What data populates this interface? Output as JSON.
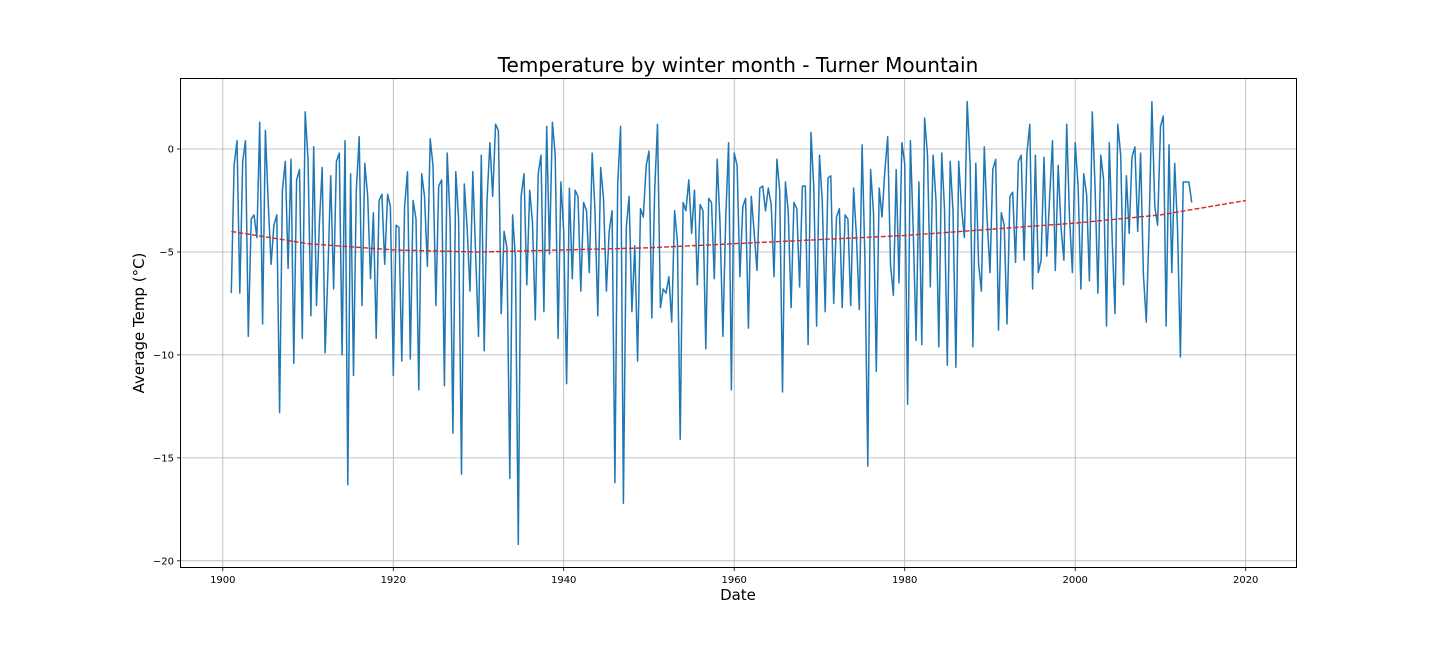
{
  "chart_data": {
    "type": "line",
    "title": "Temperature by winter month - Turner Mountain",
    "xlabel": "Date",
    "ylabel": "Average Temp (°C)",
    "xlim": [
      1895.1,
      2025.9
    ],
    "ylim": [
      -20.3,
      3.4
    ],
    "x_ticks": [
      1900,
      1920,
      1940,
      1960,
      1980,
      2000,
      2020
    ],
    "x_tick_labels": [
      "1900",
      "1920",
      "1940",
      "1960",
      "1980",
      "2000",
      "2020"
    ],
    "y_ticks": [
      -20,
      -15,
      -10,
      -5,
      0
    ],
    "y_tick_labels": [
      "−20",
      "−15",
      "−10",
      "−5",
      "0"
    ],
    "grid": true,
    "legend": "none",
    "x_scale": "date",
    "series": [
      {
        "name": "",
        "color": "#1f77b4",
        "style": "solid",
        "x_start": 1901.0,
        "samples_per_year": 3,
        "values": [
          -7.0,
          -0.8,
          0.4,
          -7.0,
          -0.6,
          0.4,
          -9.1,
          -3.4,
          -3.2,
          -4.3,
          1.3,
          -8.5,
          0.9,
          -2.6,
          -5.6,
          -3.7,
          -3.2,
          -12.8,
          -2.0,
          -0.6,
          -5.8,
          -0.5,
          -10.4,
          -1.5,
          -1.0,
          -9.2,
          1.8,
          -0.5,
          -8.1,
          0.1,
          -7.6,
          -3.6,
          -0.9,
          -9.9,
          -6.0,
          -1.3,
          -6.8,
          -0.6,
          -0.2,
          -10.0,
          0.4,
          -16.3,
          -1.2,
          -11.0,
          -2.0,
          0.6,
          -7.6,
          -0.7,
          -2.3,
          -6.3,
          -3.1,
          -9.2,
          -2.5,
          -2.2,
          -5.6,
          -2.2,
          -2.8,
          -11.0,
          -3.7,
          -3.8,
          -10.3,
          -2.8,
          -1.1,
          -10.2,
          -2.5,
          -3.4,
          -11.7,
          -1.2,
          -2.3,
          -5.7,
          0.5,
          -0.8,
          -7.6,
          -1.8,
          -1.5,
          -11.5,
          -0.2,
          -3.5,
          -13.8,
          -1.1,
          -3.4,
          -15.8,
          -1.7,
          -3.8,
          -6.9,
          -1.1,
          -5.2,
          -9.1,
          -0.3,
          -9.8,
          -2.5,
          0.3,
          -2.3,
          1.2,
          0.9,
          -8.0,
          -4.0,
          -4.8,
          -16.0,
          -3.2,
          -5.3,
          -19.2,
          -2.3,
          -1.2,
          -6.6,
          -2.0,
          -3.6,
          -8.3,
          -1.2,
          -0.3,
          -7.9,
          1.1,
          -5.1,
          1.3,
          -0.3,
          -9.2,
          -1.6,
          -4.0,
          -11.4,
          -1.9,
          -6.3,
          -2.0,
          -2.3,
          -6.9,
          -2.6,
          -3.0,
          -6.0,
          -0.2,
          -3.0,
          -8.1,
          -0.9,
          -2.4,
          -6.9,
          -4.0,
          -3.0,
          -16.2,
          -1.7,
          1.1,
          -17.2,
          -3.8,
          -2.3,
          -7.9,
          -4.7,
          -10.3,
          -2.9,
          -3.3,
          -0.8,
          -0.1,
          -8.2,
          -2.0,
          1.2,
          -7.7,
          -6.8,
          -7.0,
          -6.2,
          -8.4,
          -3.0,
          -4.5,
          -14.1,
          -2.6,
          -3.0,
          -1.5,
          -4.1,
          -2.0,
          -6.6,
          -2.7,
          -3.0,
          -9.7,
          -2.4,
          -2.6,
          -6.3,
          -0.5,
          -3.6,
          -9.1,
          -3.4,
          0.3,
          -11.7,
          -0.2,
          -0.8,
          -6.2,
          -2.8,
          -2.4,
          -8.7,
          -2.3,
          -4.0,
          -5.9,
          -1.9,
          -1.8,
          -3.0,
          -1.9,
          -2.7,
          -6.2,
          -0.5,
          -2.0,
          -11.8,
          -1.6,
          -3.0,
          -7.7,
          -2.6,
          -2.9,
          -6.7,
          -1.8,
          -1.8,
          -9.5,
          0.8,
          -1.9,
          -8.6,
          -0.3,
          -2.6,
          -7.9,
          -1.4,
          -1.3,
          -7.5,
          -3.3,
          -2.9,
          -7.7,
          -3.2,
          -3.4,
          -7.6,
          -1.9,
          -4.2,
          -7.8,
          0.2,
          -5.3,
          -15.4,
          -1.0,
          -3.1,
          -10.8,
          -1.9,
          -3.3,
          -1.1,
          0.6,
          -5.6,
          -7.1,
          -1.0,
          -6.5,
          0.3,
          -0.7,
          -12.4,
          0.4,
          -4.1,
          -9.3,
          -1.6,
          -9.5,
          1.5,
          -0.3,
          -6.7,
          -0.3,
          -2.5,
          -9.6,
          -0.2,
          -2.9,
          -10.5,
          -0.6,
          -3.0,
          -10.6,
          -0.6,
          -2.9,
          -4.3,
          2.3,
          -0.7,
          -9.6,
          -0.7,
          -5.6,
          -6.9,
          0.1,
          -3.4,
          -6.0,
          -1.0,
          -0.5,
          -8.8,
          -3.1,
          -3.7,
          -8.5,
          -2.3,
          -2.1,
          -5.5,
          -0.6,
          -0.3,
          -5.4,
          -0.2,
          1.2,
          -6.8,
          -0.3,
          -6.0,
          -5.4,
          -0.4,
          -5.2,
          -2.4,
          0.4,
          -5.9,
          -0.8,
          -3.8,
          -5.4,
          1.2,
          -3.3,
          -6.0,
          0.3,
          -1.8,
          -6.8,
          -1.2,
          -2.2,
          -6.4,
          1.8,
          -1.9,
          -7.0,
          -0.3,
          -1.5,
          -8.6,
          0.3,
          -4.4,
          -8.0,
          1.2,
          -0.3,
          -6.6,
          -1.3,
          -4.1,
          -0.4,
          0.1,
          -4.0,
          -0.2,
          -6.1,
          -8.4,
          -3.8,
          2.3,
          -2.8,
          -3.7,
          1.1,
          1.6,
          -8.6,
          0.2,
          -6.0,
          -0.7,
          -3.8,
          -10.1,
          -1.6,
          -1.6,
          -1.6,
          -2.6
        ]
      },
      {
        "name": "",
        "color": "#d62728",
        "style": "dashed",
        "x": [
          1901,
          1910,
          1920,
          1930,
          1940,
          1950,
          1960,
          1970,
          1980,
          1990,
          2000,
          2010,
          2020
        ],
        "values": [
          -4.0,
          -4.6,
          -4.9,
          -5.0,
          -4.9,
          -4.8,
          -4.6,
          -4.4,
          -4.2,
          -3.9,
          -3.6,
          -3.2,
          -2.5
        ]
      }
    ]
  }
}
